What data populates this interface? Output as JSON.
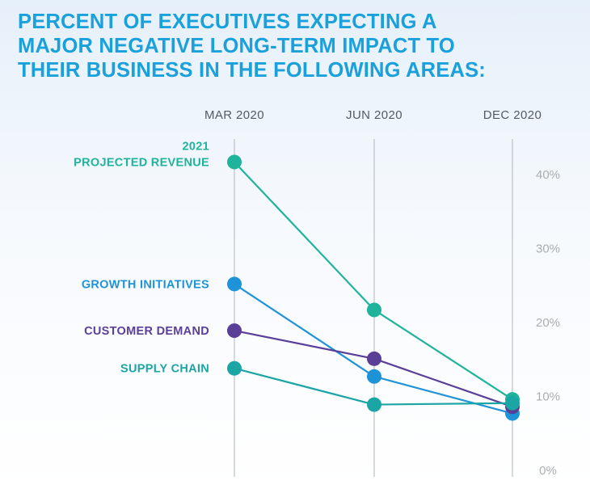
{
  "title": {
    "lines": [
      "PERCENT OF EXECUTIVES EXPECTING A",
      "MAJOR NEGATIVE LONG-TERM IMPACT TO",
      "THEIR BUSINESS IN THE FOLLOWING AREAS:"
    ]
  },
  "chart_data": {
    "type": "line",
    "title": "PERCENT OF EXECUTIVES EXPECTING A MAJOR NEGATIVE LONG-TERM IMPACT TO THEIR BUSINESS IN THE FOLLOWING AREAS:",
    "x": [
      "MAR 2020",
      "JUN 2020",
      "DEC 2020"
    ],
    "ylim": [
      0,
      45
    ],
    "yticks": [
      0,
      10,
      20,
      30,
      40
    ],
    "ytick_labels": [
      "0%",
      "10%",
      "20%",
      "30%",
      "40%"
    ],
    "grid": "vertical lines at each x category",
    "legend": "series labels at left of first point",
    "series": [
      {
        "name": "2021 PROJECTED REVENUE",
        "label_lines": [
          "2021",
          "PROJECTED REVENUE"
        ],
        "color": "#20b39c",
        "values": [
          41.7,
          21.7,
          9.6
        ]
      },
      {
        "name": "GROWTH INITIATIVES",
        "label_lines": [
          "GROWTH INITIATIVES"
        ],
        "color": "#1e93d8",
        "values": [
          25.2,
          12.7,
          7.7
        ]
      },
      {
        "name": "CUSTOMER DEMAND",
        "label_lines": [
          "CUSTOMER DEMAND"
        ],
        "color": "#5a3f99",
        "values": [
          18.9,
          15.1,
          8.6
        ]
      },
      {
        "name": "SUPPLY CHAIN",
        "label_lines": [
          "SUPPLY CHAIN"
        ],
        "color": "#1ca5a5",
        "values": [
          13.8,
          8.9,
          9.1
        ]
      }
    ]
  }
}
